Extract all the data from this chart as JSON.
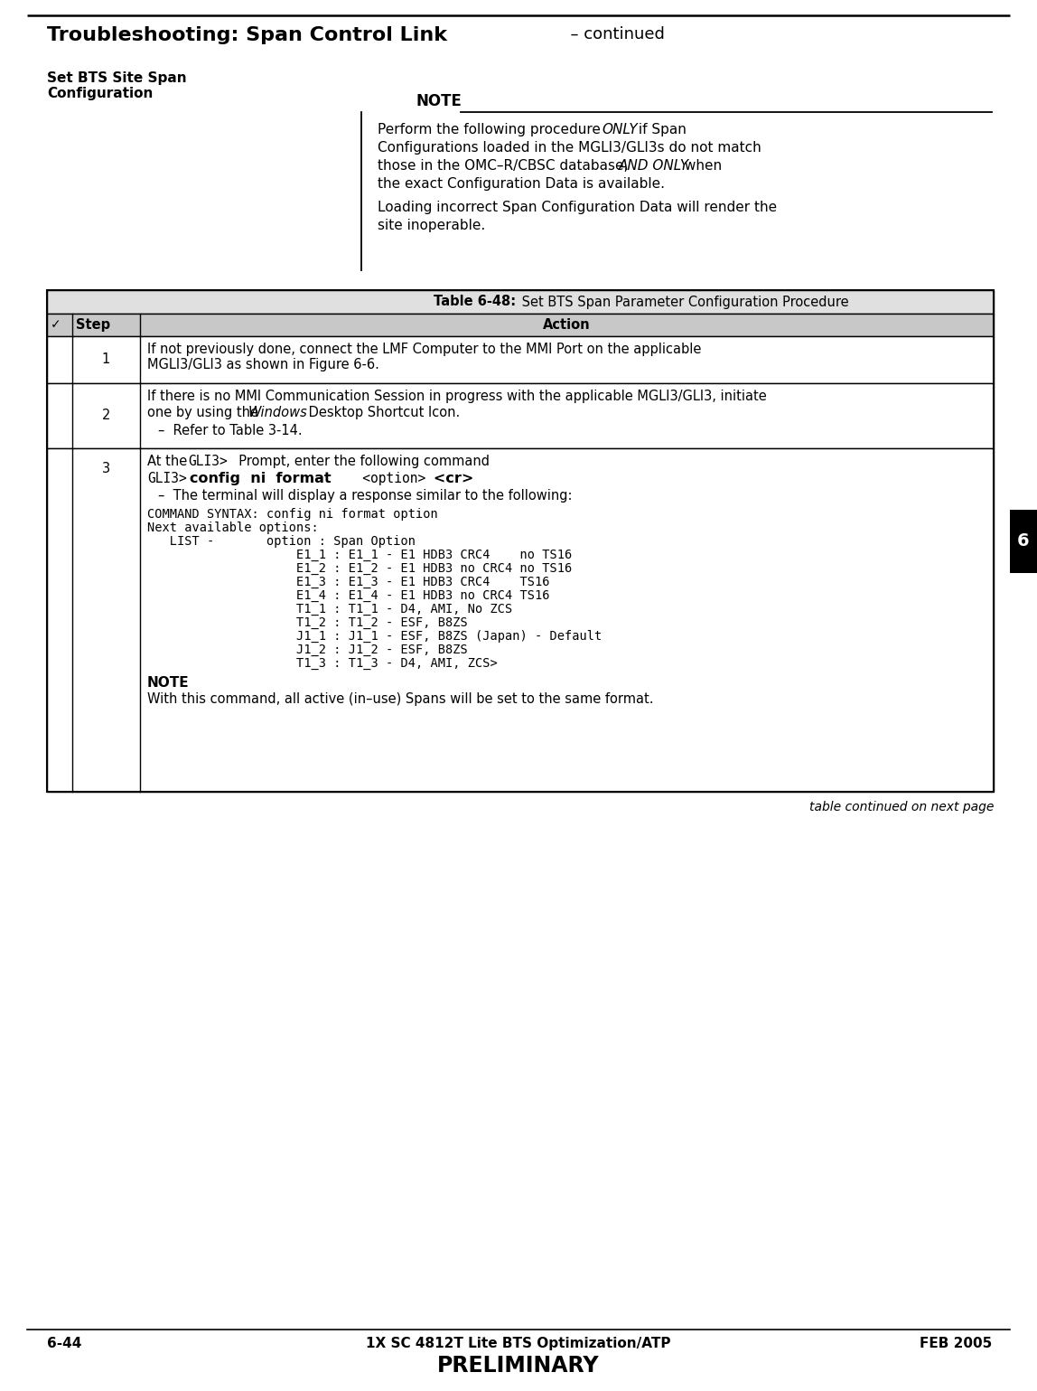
{
  "header_title_bold": "Troubleshooting: Span Control Link",
  "header_continued": "  – continued",
  "section_title": "Set BTS Site Span\nConfiguration",
  "note_title": "NOTE",
  "note_text1_parts": [
    [
      "Perform the following procedure ",
      "normal"
    ],
    [
      "ONLY",
      "italic"
    ],
    [
      " if Span\nConfigurations loaded in the MGLI3/GLI3s do not match\nthose in the OMC–R/CBSC database, ",
      "normal"
    ],
    [
      "AND ONLY",
      "italic"
    ],
    [
      " when\nthe exact Configuration Data is available.",
      "normal"
    ]
  ],
  "note_text2": "Loading incorrect Span Configuration Data will render the\nsite inoperable.",
  "table_title_bold": "Table 6-48:",
  "table_title_normal": " Set BTS Span Parameter Configuration Procedure",
  "col1_header": "Step",
  "col2_header": "Action",
  "row1_action": "If not previously done, connect the LMF Computer to the MMI Port on the applicable\nMGLI3/GLI3 as shown in Figure 6-6.",
  "row2_line1": "If there is no MMI Communication Session in progress with the applicable MGLI3/GLI3, initiate",
  "row2_line2a": "one by using the ",
  "row2_line2b": "Windows",
  "row2_line2c": " Desktop Shortcut Icon.",
  "row2_line3": "–  Refer to Table 3-14.",
  "row3_line1a": "At the ",
  "row3_line1b": "GLI3>",
  "row3_line1c": "  Prompt, enter the following command",
  "row3_line2_mono": "GLI3>",
  "row3_line2_bold": "config  ni  format",
  "row3_line2_mono2": "   <option>",
  "row3_line2_bold2": "   <cr>",
  "row3_line3": "–  The terminal will display a response similar to the following:",
  "mono_lines": [
    "COMMAND SYNTAX: config ni format option",
    "Next available options:",
    "   LIST -       option : Span Option",
    "                    E1_1 : E1_1 - E1 HDB3 CRC4    no TS16",
    "                    E1_2 : E1_2 - E1 HDB3 no CRC4 no TS16",
    "                    E1_3 : E1_3 - E1 HDB3 CRC4    TS16",
    "                    E1_4 : E1_4 - E1 HDB3 no CRC4 TS16",
    "                    T1_1 : T1_1 - D4, AMI, No ZCS",
    "                    T1_2 : T1_2 - ESF, B8ZS",
    "                    J1_1 : J1_1 - ESF, B8ZS (Japan) - Default",
    "                    J1_2 : J1_2 - ESF, B8ZS",
    "                    T1_3 : T1_3 - D4, AMI, ZCS>"
  ],
  "row3_note_label": "NOTE",
  "row3_note_text": "With this command, all active (in–use) Spans will be set to the same format.",
  "table_continued": "table continued on next page",
  "footer_left": "6-44",
  "footer_center": "1X SC 4812T Lite BTS Optimization/ATP",
  "footer_right": "FEB 2005",
  "footer_prelim": "PRELIMINARY",
  "side_number": "6",
  "bg_color": "#ffffff"
}
